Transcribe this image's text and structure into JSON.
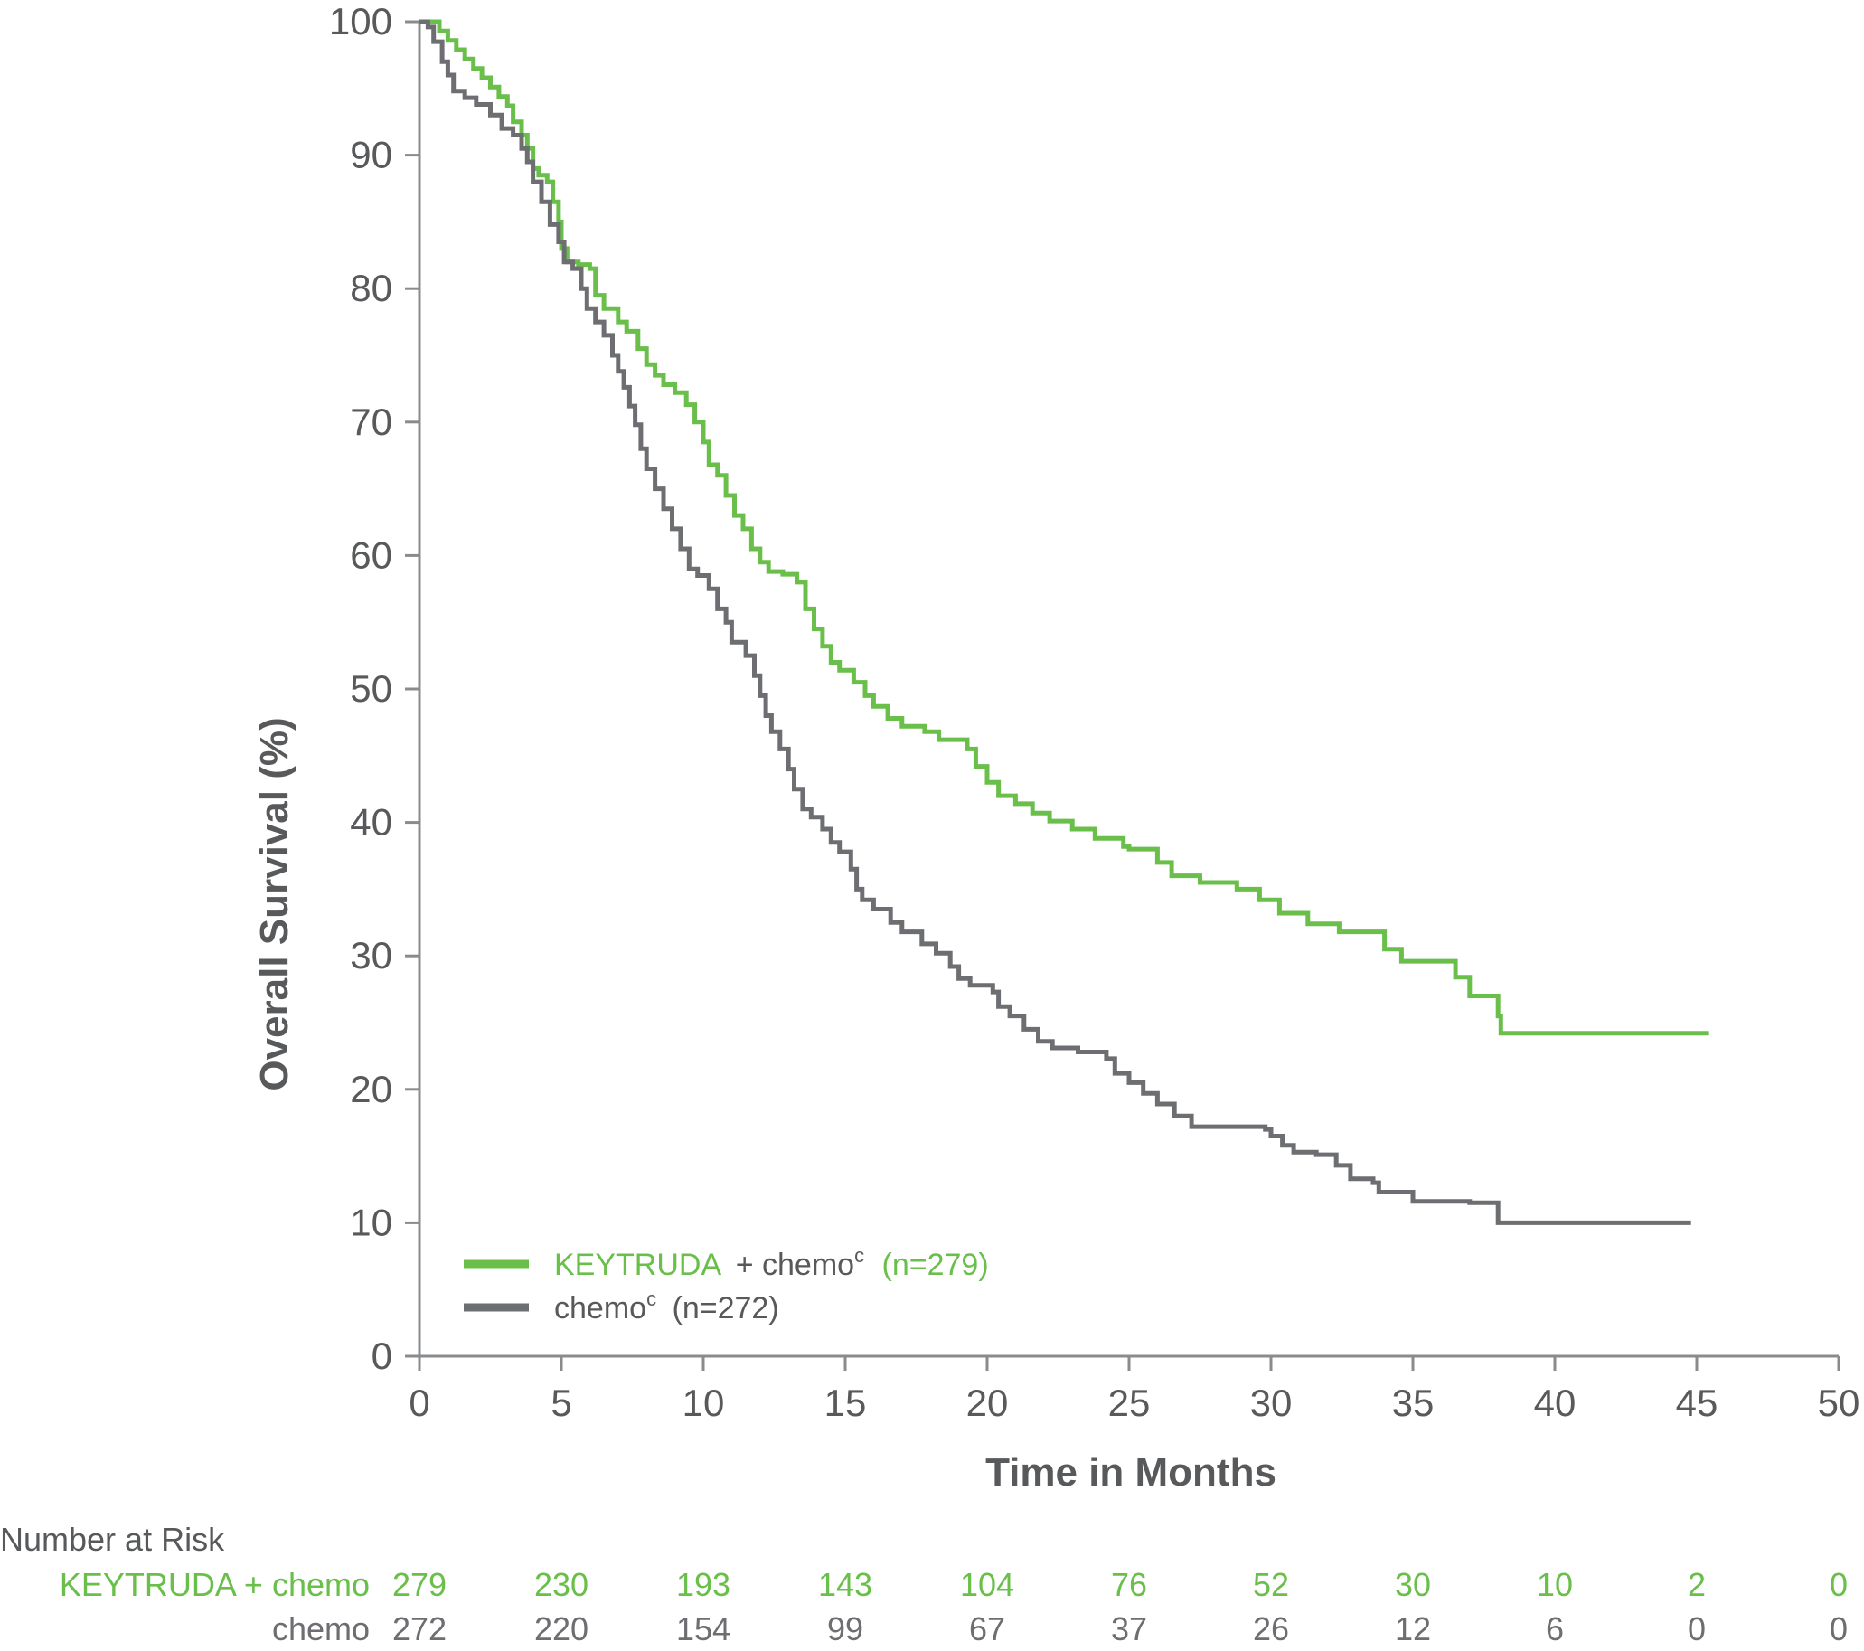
{
  "colors": {
    "keytruda": "#6abf4b",
    "chemo": "#6d6e71",
    "axis": "#8a8b8d",
    "text": "#58595b"
  },
  "chart_data": {
    "type": "line",
    "xlabel": "Time in Months",
    "ylabel": "Overall Survival (%)",
    "xlim": [
      0,
      50
    ],
    "ylim": [
      0,
      100
    ],
    "xticks": [
      0,
      5,
      10,
      15,
      20,
      25,
      30,
      35,
      40,
      45,
      50
    ],
    "yticks": [
      0,
      10,
      20,
      30,
      40,
      50,
      60,
      70,
      80,
      90,
      100
    ],
    "grid": false,
    "legend_position": "bottom-left",
    "legend": {
      "keytruda": {
        "name": "KEYTRUDA",
        "plus": "+ chemo",
        "sup": "c",
        "n": "(n=279)"
      },
      "chemo": {
        "name": "chemo",
        "sup": "c",
        "n": "(n=272)"
      }
    },
    "series": [
      {
        "name": "KEYTRUDA + chemo",
        "color_key": "keytruda",
        "points": [
          [
            0,
            100
          ],
          [
            0.6,
            100
          ],
          [
            0.7,
            99.3
          ],
          [
            1.0,
            98.6
          ],
          [
            1.3,
            97.9
          ],
          [
            1.6,
            97.2
          ],
          [
            1.9,
            96.5
          ],
          [
            2.2,
            95.8
          ],
          [
            2.5,
            95.1
          ],
          [
            2.8,
            94.4
          ],
          [
            3.1,
            93.7
          ],
          [
            3.3,
            92.5
          ],
          [
            3.6,
            91.5
          ],
          [
            3.8,
            90.5
          ],
          [
            4.0,
            89
          ],
          [
            4.2,
            88.5
          ],
          [
            4.5,
            88
          ],
          [
            4.7,
            86.5
          ],
          [
            4.9,
            85
          ],
          [
            5.0,
            83
          ],
          [
            5.2,
            82
          ],
          [
            5.6,
            81.8
          ],
          [
            6.0,
            81.5
          ],
          [
            6.2,
            79.5
          ],
          [
            6.5,
            78.5
          ],
          [
            7.0,
            77.5
          ],
          [
            7.3,
            76.8
          ],
          [
            7.7,
            75.5
          ],
          [
            8.0,
            74.3
          ],
          [
            8.3,
            73.5
          ],
          [
            8.6,
            72.8
          ],
          [
            9.0,
            72.2
          ],
          [
            9.4,
            71.3
          ],
          [
            9.7,
            70
          ],
          [
            10.0,
            68.5
          ],
          [
            10.2,
            66.8
          ],
          [
            10.5,
            66
          ],
          [
            10.8,
            64.5
          ],
          [
            11.1,
            63
          ],
          [
            11.4,
            62
          ],
          [
            11.7,
            60.5
          ],
          [
            12.0,
            59.5
          ],
          [
            12.3,
            58.8
          ],
          [
            12.8,
            58.6
          ],
          [
            13.3,
            58
          ],
          [
            13.6,
            56
          ],
          [
            13.9,
            54.5
          ],
          [
            14.2,
            53.2
          ],
          [
            14.5,
            52
          ],
          [
            14.8,
            51.4
          ],
          [
            15.3,
            50.5
          ],
          [
            15.7,
            49.5
          ],
          [
            16.0,
            48.7
          ],
          [
            16.5,
            47.8
          ],
          [
            17.0,
            47.2
          ],
          [
            17.8,
            46.8
          ],
          [
            18.3,
            46.2
          ],
          [
            19.3,
            45.5
          ],
          [
            19.6,
            44.2
          ],
          [
            20.0,
            43
          ],
          [
            20.4,
            42
          ],
          [
            21.0,
            41.4
          ],
          [
            21.6,
            40.7
          ],
          [
            22.2,
            40.1
          ],
          [
            23.0,
            39.5
          ],
          [
            23.8,
            38.8
          ],
          [
            24.8,
            38.2
          ],
          [
            25.0,
            38
          ],
          [
            26.0,
            37
          ],
          [
            26.5,
            36
          ],
          [
            27.5,
            35.5
          ],
          [
            28.8,
            35
          ],
          [
            29.6,
            34.2
          ],
          [
            30.3,
            33.2
          ],
          [
            31.3,
            32.4
          ],
          [
            32.4,
            31.8
          ],
          [
            34.0,
            30.5
          ],
          [
            34.6,
            29.6
          ],
          [
            36.5,
            28.4
          ],
          [
            37.0,
            27
          ],
          [
            38.0,
            25.5
          ],
          [
            38.1,
            24.2
          ],
          [
            45.4,
            24.2
          ]
        ]
      },
      {
        "name": "chemo",
        "color_key": "chemo",
        "points": [
          [
            0,
            100
          ],
          [
            0.3,
            99.6
          ],
          [
            0.5,
            98.5
          ],
          [
            0.8,
            97
          ],
          [
            1.0,
            96
          ],
          [
            1.2,
            94.8
          ],
          [
            1.6,
            94.3
          ],
          [
            2.0,
            93.8
          ],
          [
            2.5,
            93
          ],
          [
            2.9,
            92
          ],
          [
            3.3,
            91.5
          ],
          [
            3.6,
            90.5
          ],
          [
            3.8,
            89.5
          ],
          [
            4.0,
            88
          ],
          [
            4.3,
            86.5
          ],
          [
            4.6,
            84.8
          ],
          [
            4.9,
            83.5
          ],
          [
            5.1,
            82
          ],
          [
            5.4,
            81.5
          ],
          [
            5.7,
            80
          ],
          [
            5.9,
            78.5
          ],
          [
            6.2,
            77.5
          ],
          [
            6.5,
            76.5
          ],
          [
            6.8,
            75
          ],
          [
            7.0,
            73.8
          ],
          [
            7.2,
            72.6
          ],
          [
            7.4,
            71.2
          ],
          [
            7.6,
            69.8
          ],
          [
            7.8,
            68
          ],
          [
            8.0,
            66.5
          ],
          [
            8.3,
            65
          ],
          [
            8.6,
            63.5
          ],
          [
            8.9,
            62
          ],
          [
            9.2,
            60.5
          ],
          [
            9.5,
            59
          ],
          [
            9.8,
            58.5
          ],
          [
            10.2,
            57.5
          ],
          [
            10.5,
            56
          ],
          [
            10.8,
            55
          ],
          [
            11.0,
            53.5
          ],
          [
            11.5,
            52.5
          ],
          [
            11.8,
            51
          ],
          [
            12.0,
            49.5
          ],
          [
            12.2,
            48
          ],
          [
            12.4,
            46.8
          ],
          [
            12.7,
            45.5
          ],
          [
            13.0,
            44
          ],
          [
            13.2,
            42.5
          ],
          [
            13.5,
            41
          ],
          [
            13.8,
            40.4
          ],
          [
            14.2,
            39.5
          ],
          [
            14.5,
            38.5
          ],
          [
            14.8,
            37.8
          ],
          [
            15.2,
            36.5
          ],
          [
            15.4,
            35
          ],
          [
            15.6,
            34.2
          ],
          [
            16.0,
            33.5
          ],
          [
            16.6,
            32.5
          ],
          [
            17.0,
            31.8
          ],
          [
            17.7,
            30.9
          ],
          [
            18.2,
            30.2
          ],
          [
            18.7,
            29.2
          ],
          [
            19.0,
            28.3
          ],
          [
            19.4,
            27.8
          ],
          [
            20.2,
            27.3
          ],
          [
            20.4,
            26.2
          ],
          [
            20.8,
            25.5
          ],
          [
            21.3,
            24.5
          ],
          [
            21.8,
            23.6
          ],
          [
            22.3,
            23.1
          ],
          [
            23.2,
            22.8
          ],
          [
            24.2,
            22.3
          ],
          [
            24.5,
            21.2
          ],
          [
            25.0,
            20.5
          ],
          [
            25.5,
            19.7
          ],
          [
            26.0,
            18.9
          ],
          [
            26.6,
            18
          ],
          [
            27.2,
            17.2
          ],
          [
            29.8,
            17
          ],
          [
            30.0,
            16.5
          ],
          [
            30.4,
            15.8
          ],
          [
            30.8,
            15.3
          ],
          [
            31.6,
            15.1
          ],
          [
            32.3,
            14.3
          ],
          [
            32.8,
            13.3
          ],
          [
            33.6,
            13
          ],
          [
            33.8,
            12.3
          ],
          [
            35.0,
            11.6
          ],
          [
            37.0,
            11.5
          ],
          [
            38.0,
            10
          ],
          [
            44.8,
            10
          ]
        ]
      }
    ]
  },
  "risk_table": {
    "title": "Number at Risk",
    "rows": [
      {
        "label": "KEYTRUDA + chemo",
        "color_key": "keytruda",
        "values": [
          "279",
          "230",
          "193",
          "143",
          "104",
          "76",
          "52",
          "30",
          "10",
          "2",
          "0"
        ]
      },
      {
        "label": "chemo",
        "color_key": "chemo",
        "values": [
          "272",
          "220",
          "154",
          "99",
          "67",
          "37",
          "26",
          "12",
          "6",
          "0",
          "0"
        ]
      }
    ]
  }
}
